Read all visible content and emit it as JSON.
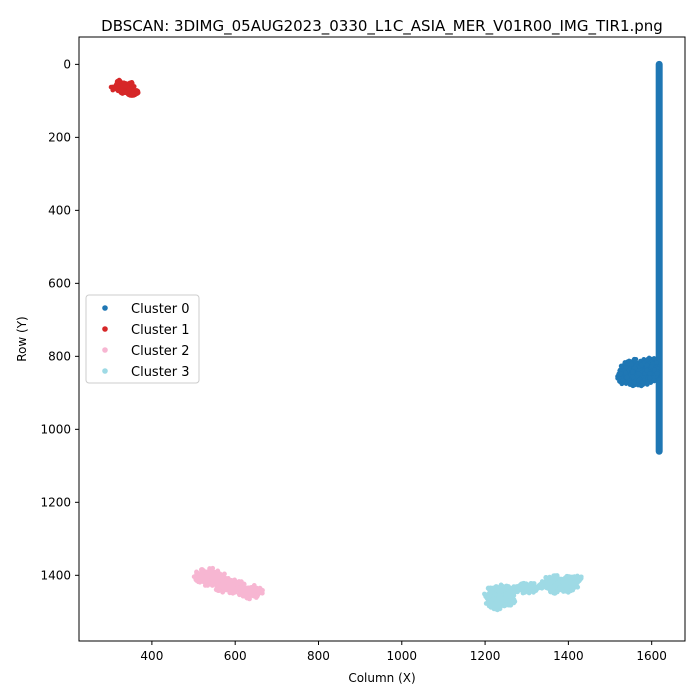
{
  "chart_data": {
    "type": "scatter",
    "title": "DBSCAN: 3DIMG_05AUG2023_0330_L1C_ASIA_MER_V01R00_IMG_TIR1.png",
    "xlabel": "Column (X)",
    "ylabel": "Row (Y)",
    "xlim": [
      225,
      1680
    ],
    "ylim": [
      1580,
      -75
    ],
    "y_inverted": true,
    "xticks": [
      400,
      600,
      800,
      1000,
      1200,
      1400,
      1600
    ],
    "yticks": [
      0,
      200,
      400,
      600,
      800,
      1000,
      1200,
      1400
    ],
    "grid": false,
    "legend_position": "center-left",
    "series": [
      {
        "name": "Cluster 0",
        "color": "#1f77b4",
        "regions": [
          {
            "shape": "vline",
            "x": 1618,
            "y_range": [
              0,
              1060
            ]
          },
          {
            "shape": "blob",
            "cx": 1568,
            "cy": 845,
            "rx": 48,
            "ry": 38
          },
          {
            "shape": "blob",
            "cx": 1545,
            "cy": 858,
            "rx": 28,
            "ry": 22
          },
          {
            "shape": "blob",
            "cx": 1600,
            "cy": 832,
            "rx": 20,
            "ry": 30
          }
        ]
      },
      {
        "name": "Cluster 1",
        "color": "#d62728",
        "regions": [
          {
            "shape": "blob",
            "cx": 330,
            "cy": 62,
            "rx": 28,
            "ry": 20
          },
          {
            "shape": "blob",
            "cx": 352,
            "cy": 80,
            "rx": 18,
            "ry": 14
          }
        ]
      },
      {
        "name": "Cluster 2",
        "color": "#f7b6d2",
        "regions": [
          {
            "shape": "blob",
            "cx": 540,
            "cy": 1405,
            "rx": 42,
            "ry": 25
          },
          {
            "shape": "blob",
            "cx": 585,
            "cy": 1428,
            "rx": 38,
            "ry": 22
          },
          {
            "shape": "blob",
            "cx": 635,
            "cy": 1445,
            "rx": 32,
            "ry": 20
          }
        ]
      },
      {
        "name": "Cluster 3",
        "color": "#9edae5",
        "regions": [
          {
            "shape": "blob",
            "cx": 1235,
            "cy": 1460,
            "rx": 40,
            "ry": 35
          },
          {
            "shape": "blob",
            "cx": 1300,
            "cy": 1435,
            "rx": 40,
            "ry": 15
          },
          {
            "shape": "blob",
            "cx": 1375,
            "cy": 1425,
            "rx": 50,
            "ry": 25
          },
          {
            "shape": "blob",
            "cx": 1415,
            "cy": 1410,
            "rx": 18,
            "ry": 14
          }
        ]
      }
    ]
  }
}
